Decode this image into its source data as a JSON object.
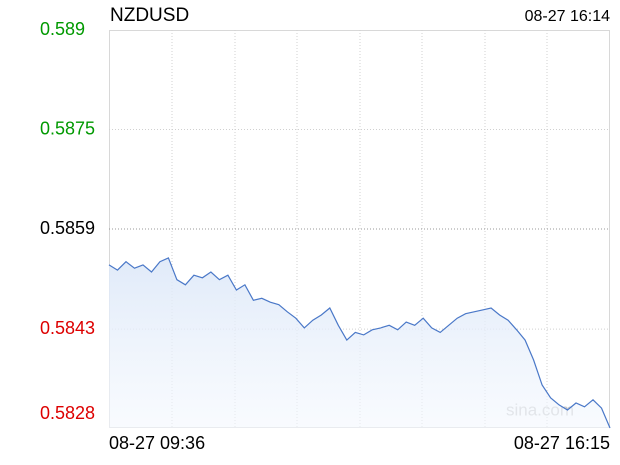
{
  "chart_data": {
    "type": "line",
    "title": "NZDUSD",
    "timestamp": "08-27 16:14",
    "watermark": "sina.com",
    "categories": [
      "08-27 09:36",
      null,
      null,
      null,
      null,
      null,
      null,
      null,
      null,
      null,
      null,
      null,
      null,
      null,
      null,
      null,
      null,
      null,
      null,
      null,
      null,
      null,
      null,
      null,
      null,
      null,
      null,
      null,
      null,
      null,
      null,
      null,
      null,
      null,
      null,
      null,
      null,
      null,
      null,
      null,
      null,
      null,
      null,
      null,
      null,
      null,
      null,
      null,
      null,
      null,
      null,
      null,
      null,
      null,
      null,
      null,
      null,
      null,
      null,
      "08-27 16:15"
    ],
    "series": [
      {
        "name": "NZDUSD",
        "color": "#4a78c8",
        "values": [
          0.58534,
          0.58526,
          0.58539,
          0.58529,
          0.58534,
          0.58523,
          0.58539,
          0.58545,
          0.58511,
          0.58503,
          0.58518,
          0.58514,
          0.58523,
          0.58511,
          0.58518,
          0.58495,
          0.58503,
          0.58479,
          0.58482,
          0.58476,
          0.58472,
          0.58461,
          0.58451,
          0.58436,
          0.58448,
          0.58456,
          0.58467,
          0.5844,
          0.58417,
          0.58429,
          0.58425,
          0.58433,
          0.58436,
          0.5844,
          0.58433,
          0.58445,
          0.5844,
          0.58451,
          0.58436,
          0.58429,
          0.5844,
          0.58451,
          0.58458,
          0.58461,
          0.58464,
          0.58467,
          0.58456,
          0.58448,
          0.58433,
          0.58417,
          0.58386,
          0.58347,
          0.58327,
          0.58316,
          0.58308,
          0.58319,
          0.58313,
          0.58324,
          0.58311,
          0.5828
        ]
      }
    ],
    "ylim": [
      0.5828,
      0.589
    ],
    "yticks": [
      0.589,
      {
        "value": 0.58745,
        "label": "0.5875"
      },
      0.5859,
      {
        "value": 0.58434,
        "label": "0.5843"
      },
      0.5828
    ],
    "up_color": "#009900",
    "down_color": "#dd0000",
    "grid": true
  }
}
